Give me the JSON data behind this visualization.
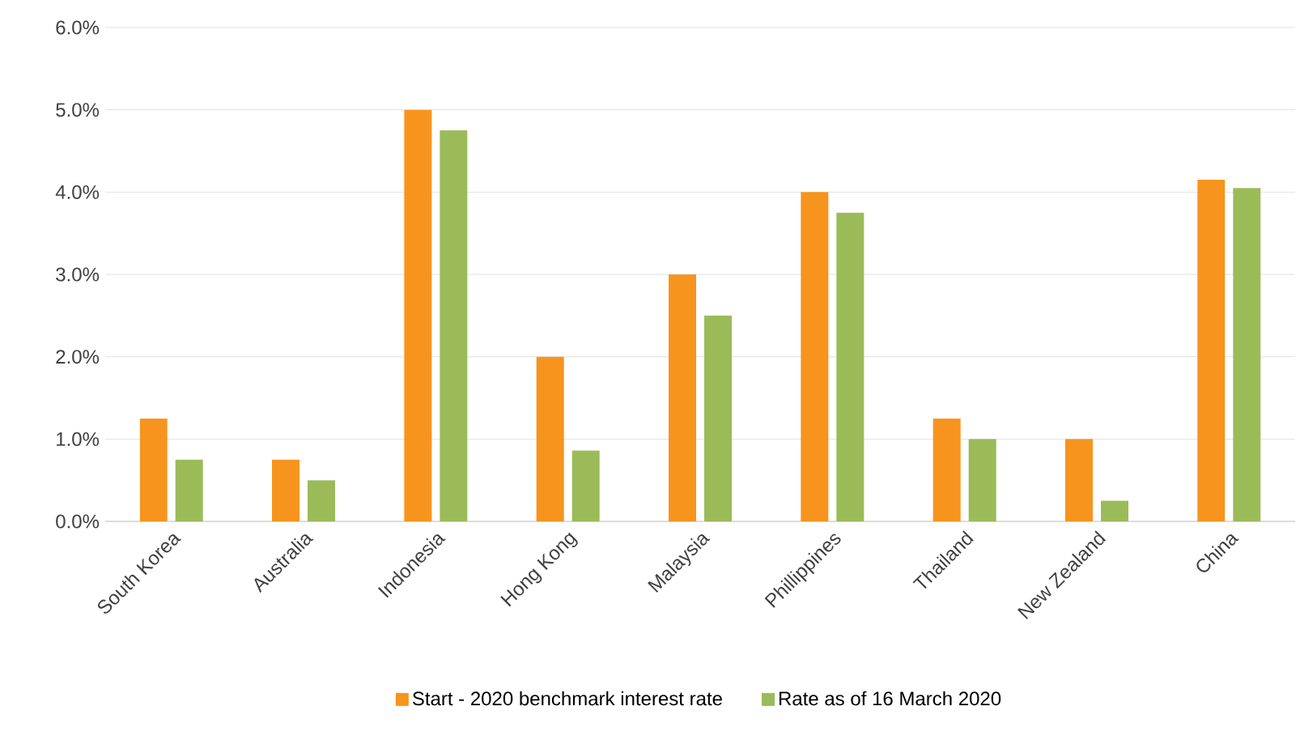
{
  "chart_data": {
    "type": "bar",
    "categories": [
      "South Korea",
      "Australia",
      "Indonesia",
      "Hong Kong",
      "Malaysia",
      "Phillippines",
      "Thailand",
      "New Zealand",
      "China"
    ],
    "series": [
      {
        "name": "Start - 2020 benchmark interest rate",
        "color": "#f7941d",
        "values": [
          1.25,
          0.75,
          5.0,
          2.0,
          3.0,
          4.0,
          1.25,
          1.0,
          4.15
        ]
      },
      {
        "name": "Rate as of 16 March 2020",
        "color": "#9bbb59",
        "values": [
          0.75,
          0.5,
          4.75,
          0.86,
          2.5,
          3.75,
          1.0,
          0.25,
          4.05
        ]
      }
    ],
    "ylim": [
      0,
      6
    ],
    "yticks": [
      {
        "value": 0,
        "label": "0.0%"
      },
      {
        "value": 1,
        "label": "1.0%"
      },
      {
        "value": 2,
        "label": "2.0%"
      },
      {
        "value": 3,
        "label": "3.0%"
      },
      {
        "value": 4,
        "label": "4.0%"
      },
      {
        "value": 5,
        "label": "5.0%"
      },
      {
        "value": 6,
        "label": "6.0%"
      }
    ],
    "grid": "y",
    "legend": "bottom"
  }
}
